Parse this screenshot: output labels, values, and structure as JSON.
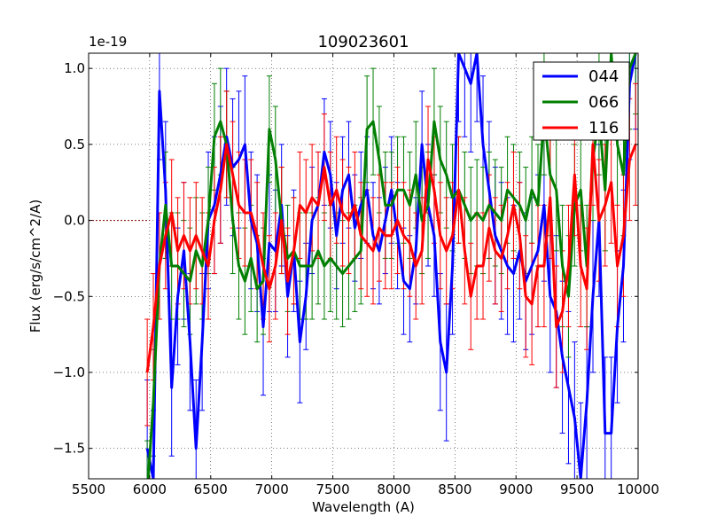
{
  "chart_data": {
    "type": "line",
    "title": "109023601",
    "xlabel": "Wavelength (A)",
    "ylabel": "Flux (erg/s/cm^2/A)",
    "xlim": [
      5500,
      10000
    ],
    "ylim": [
      -1.7,
      1.1
    ],
    "y_offset_label": "1e-19",
    "grid": true,
    "legend_position": "top-right",
    "x_ticks": [
      5500,
      6000,
      6500,
      7000,
      7500,
      8000,
      8500,
      9000,
      9500,
      10000
    ],
    "x_tick_labels": [
      "5500",
      "6000",
      "6500",
      "7000",
      "7500",
      "8000",
      "8500",
      "9000",
      "9500",
      "10000"
    ],
    "y_ticks": [
      -1.5,
      -1.0,
      -0.5,
      0.0,
      0.5,
      1.0
    ],
    "y_tick_labels": [
      "−1.5",
      "−1.0",
      "−0.5",
      "0.0",
      "0.5",
      "1.0"
    ],
    "zero_line": {
      "from": 5500,
      "to": 6000,
      "value": 0.0
    },
    "x": [
      5980,
      6030,
      6080,
      6130,
      6180,
      6230,
      6280,
      6330,
      6380,
      6430,
      6480,
      6530,
      6580,
      6630,
      6680,
      6730,
      6780,
      6830,
      6880,
      6930,
      6980,
      7030,
      7080,
      7130,
      7180,
      7230,
      7280,
      7330,
      7380,
      7430,
      7480,
      7530,
      7580,
      7630,
      7680,
      7730,
      7780,
      7830,
      7880,
      7930,
      7980,
      8030,
      8080,
      8130,
      8180,
      8230,
      8280,
      8330,
      8380,
      8430,
      8480,
      8530,
      8580,
      8630,
      8680,
      8730,
      8780,
      8830,
      8880,
      8930,
      8980,
      9030,
      9080,
      9130,
      9180,
      9230,
      9280,
      9330,
      9380,
      9430,
      9480,
      9530,
      9580,
      9630,
      9680,
      9730,
      9780,
      9830,
      9880,
      9930,
      9980
    ],
    "series": [
      {
        "name": "044",
        "color": "#0000ff",
        "values": [
          -1.5,
          -1.7,
          0.85,
          0.2,
          -1.1,
          -0.5,
          -0.2,
          -0.8,
          -1.5,
          -0.8,
          0.0,
          0.1,
          0.3,
          0.55,
          0.35,
          0.4,
          0.5,
          0.0,
          -0.15,
          -0.7,
          -0.15,
          -0.2,
          0.1,
          -0.5,
          -0.2,
          -0.8,
          -0.5,
          0.0,
          0.1,
          0.45,
          0.3,
          -0.1,
          0.2,
          0.3,
          -0.05,
          0.1,
          0.2,
          -0.1,
          -0.2,
          0.0,
          0.2,
          -0.1,
          -0.4,
          -0.45,
          -0.2,
          0.5,
          0.1,
          -0.1,
          -0.8,
          -1.0,
          -0.3,
          1.1,
          1.0,
          0.9,
          1.1,
          0.5,
          0.2,
          -0.1,
          -0.2,
          -0.3,
          -0.35,
          -0.2,
          -0.4,
          -0.3,
          -0.2,
          0.1,
          -0.5,
          -0.6,
          -0.9,
          -1.1,
          -1.3,
          -1.7,
          -1.2,
          -0.5,
          0.0,
          -1.4,
          -1.4,
          -0.7,
          -0.3,
          0.9,
          1.1
        ],
        "errors": [
          0.45,
          0.45,
          0.45,
          0.45,
          0.45,
          0.45,
          0.45,
          0.45,
          0.45,
          0.45,
          0.45,
          0.45,
          0.45,
          0.45,
          0.45,
          0.45,
          0.45,
          0.45,
          0.45,
          0.45,
          0.45,
          0.4,
          0.4,
          0.4,
          0.4,
          0.4,
          0.35,
          0.35,
          0.35,
          0.35,
          0.35,
          0.35,
          0.35,
          0.35,
          0.35,
          0.35,
          0.35,
          0.35,
          0.35,
          0.35,
          0.35,
          0.35,
          0.35,
          0.35,
          0.35,
          0.35,
          0.4,
          0.4,
          0.45,
          0.45,
          0.45,
          0.45,
          0.45,
          0.45,
          0.45,
          0.45,
          0.45,
          0.45,
          0.45,
          0.45,
          0.45,
          0.45,
          0.45,
          0.45,
          0.5,
          0.5,
          0.5,
          0.5,
          0.5,
          0.5,
          0.5,
          0.5,
          0.5,
          0.5,
          0.5,
          0.5,
          0.5,
          0.5,
          0.5,
          0.5,
          0.5
        ]
      },
      {
        "name": "066",
        "color": "#007f00",
        "values": [
          -1.8,
          -1.2,
          -0.3,
          0.1,
          -0.3,
          -0.3,
          -0.35,
          -0.4,
          -0.2,
          -0.3,
          0.0,
          0.55,
          0.65,
          0.5,
          0.0,
          -0.3,
          -0.4,
          -0.25,
          -0.45,
          -0.4,
          0.6,
          0.4,
          0.0,
          -0.25,
          -0.2,
          -0.3,
          -0.3,
          -0.3,
          -0.2,
          -0.3,
          -0.25,
          -0.3,
          -0.35,
          -0.3,
          -0.25,
          -0.2,
          0.6,
          0.65,
          0.4,
          0.1,
          0.1,
          0.2,
          0.2,
          0.1,
          0.3,
          0.0,
          0.1,
          0.65,
          0.4,
          0.3,
          0.15,
          0.2,
          0.1,
          0.0,
          0.05,
          0.0,
          0.1,
          0.05,
          0.0,
          0.2,
          0.15,
          0.1,
          0.0,
          0.2,
          0.1,
          0.7,
          0.3,
          0.2,
          -0.3,
          -0.5,
          0.1,
          0.2,
          -0.3,
          0.4,
          0.7,
          0.2,
          1.1,
          0.5,
          0.3,
          1.0,
          1.1
        ],
        "errors": [
          0.35,
          0.35,
          0.35,
          0.35,
          0.35,
          0.35,
          0.35,
          0.35,
          0.35,
          0.35,
          0.35,
          0.35,
          0.35,
          0.35,
          0.35,
          0.35,
          0.35,
          0.35,
          0.35,
          0.35,
          0.35,
          0.35,
          0.35,
          0.35,
          0.35,
          0.35,
          0.35,
          0.35,
          0.35,
          0.35,
          0.35,
          0.35,
          0.35,
          0.35,
          0.35,
          0.35,
          0.35,
          0.35,
          0.35,
          0.35,
          0.35,
          0.35,
          0.35,
          0.35,
          0.35,
          0.35,
          0.35,
          0.35,
          0.35,
          0.35,
          0.35,
          0.35,
          0.35,
          0.35,
          0.35,
          0.35,
          0.35,
          0.35,
          0.35,
          0.35,
          0.35,
          0.35,
          0.35,
          0.35,
          0.4,
          0.4,
          0.4,
          0.4,
          0.4,
          0.4,
          0.4,
          0.4,
          0.4,
          0.4,
          0.4,
          0.4,
          0.4,
          0.4,
          0.4,
          0.4,
          0.4
        ]
      },
      {
        "name": "116",
        "color": "#ff0000",
        "values": [
          -1.0,
          -0.7,
          -0.3,
          -0.1,
          0.05,
          -0.2,
          -0.1,
          -0.2,
          -0.1,
          -0.2,
          -0.3,
          0.0,
          0.2,
          0.5,
          0.3,
          0.1,
          0.05,
          0.05,
          -0.1,
          -0.3,
          -0.45,
          -0.3,
          0.0,
          -0.4,
          -0.2,
          0.1,
          0.05,
          0.15,
          0.1,
          0.35,
          0.1,
          0.2,
          0.05,
          0.0,
          0.1,
          -0.1,
          -0.15,
          -0.2,
          -0.05,
          -0.1,
          -0.1,
          0.0,
          -0.1,
          -0.15,
          -0.3,
          -0.2,
          0.4,
          0.2,
          -0.1,
          -0.2,
          -0.1,
          0.2,
          -0.2,
          -0.5,
          -0.3,
          -0.3,
          -0.05,
          -0.2,
          -0.25,
          -0.1,
          0.1,
          -0.1,
          -0.5,
          -0.55,
          -0.3,
          -0.3,
          0.15,
          -0.7,
          -0.6,
          -0.3,
          0.3,
          -0.3,
          -0.45,
          0.5,
          0.0,
          0.1,
          0.25,
          -0.3,
          -0.1,
          0.4,
          0.5
        ],
        "errors": [
          0.35,
          0.35,
          0.35,
          0.35,
          0.35,
          0.35,
          0.35,
          0.35,
          0.35,
          0.35,
          0.35,
          0.35,
          0.35,
          0.35,
          0.35,
          0.35,
          0.35,
          0.35,
          0.35,
          0.35,
          0.35,
          0.35,
          0.35,
          0.35,
          0.35,
          0.35,
          0.35,
          0.35,
          0.35,
          0.35,
          0.35,
          0.35,
          0.35,
          0.35,
          0.35,
          0.35,
          0.35,
          0.35,
          0.35,
          0.35,
          0.35,
          0.35,
          0.35,
          0.35,
          0.35,
          0.35,
          0.35,
          0.35,
          0.35,
          0.35,
          0.35,
          0.35,
          0.35,
          0.35,
          0.35,
          0.35,
          0.35,
          0.35,
          0.35,
          0.35,
          0.35,
          0.35,
          0.4,
          0.4,
          0.4,
          0.4,
          0.4,
          0.4,
          0.4,
          0.4,
          0.4,
          0.4,
          0.4,
          0.4,
          0.4,
          0.4,
          0.4,
          0.4,
          0.4,
          0.4,
          0.4
        ]
      }
    ]
  }
}
